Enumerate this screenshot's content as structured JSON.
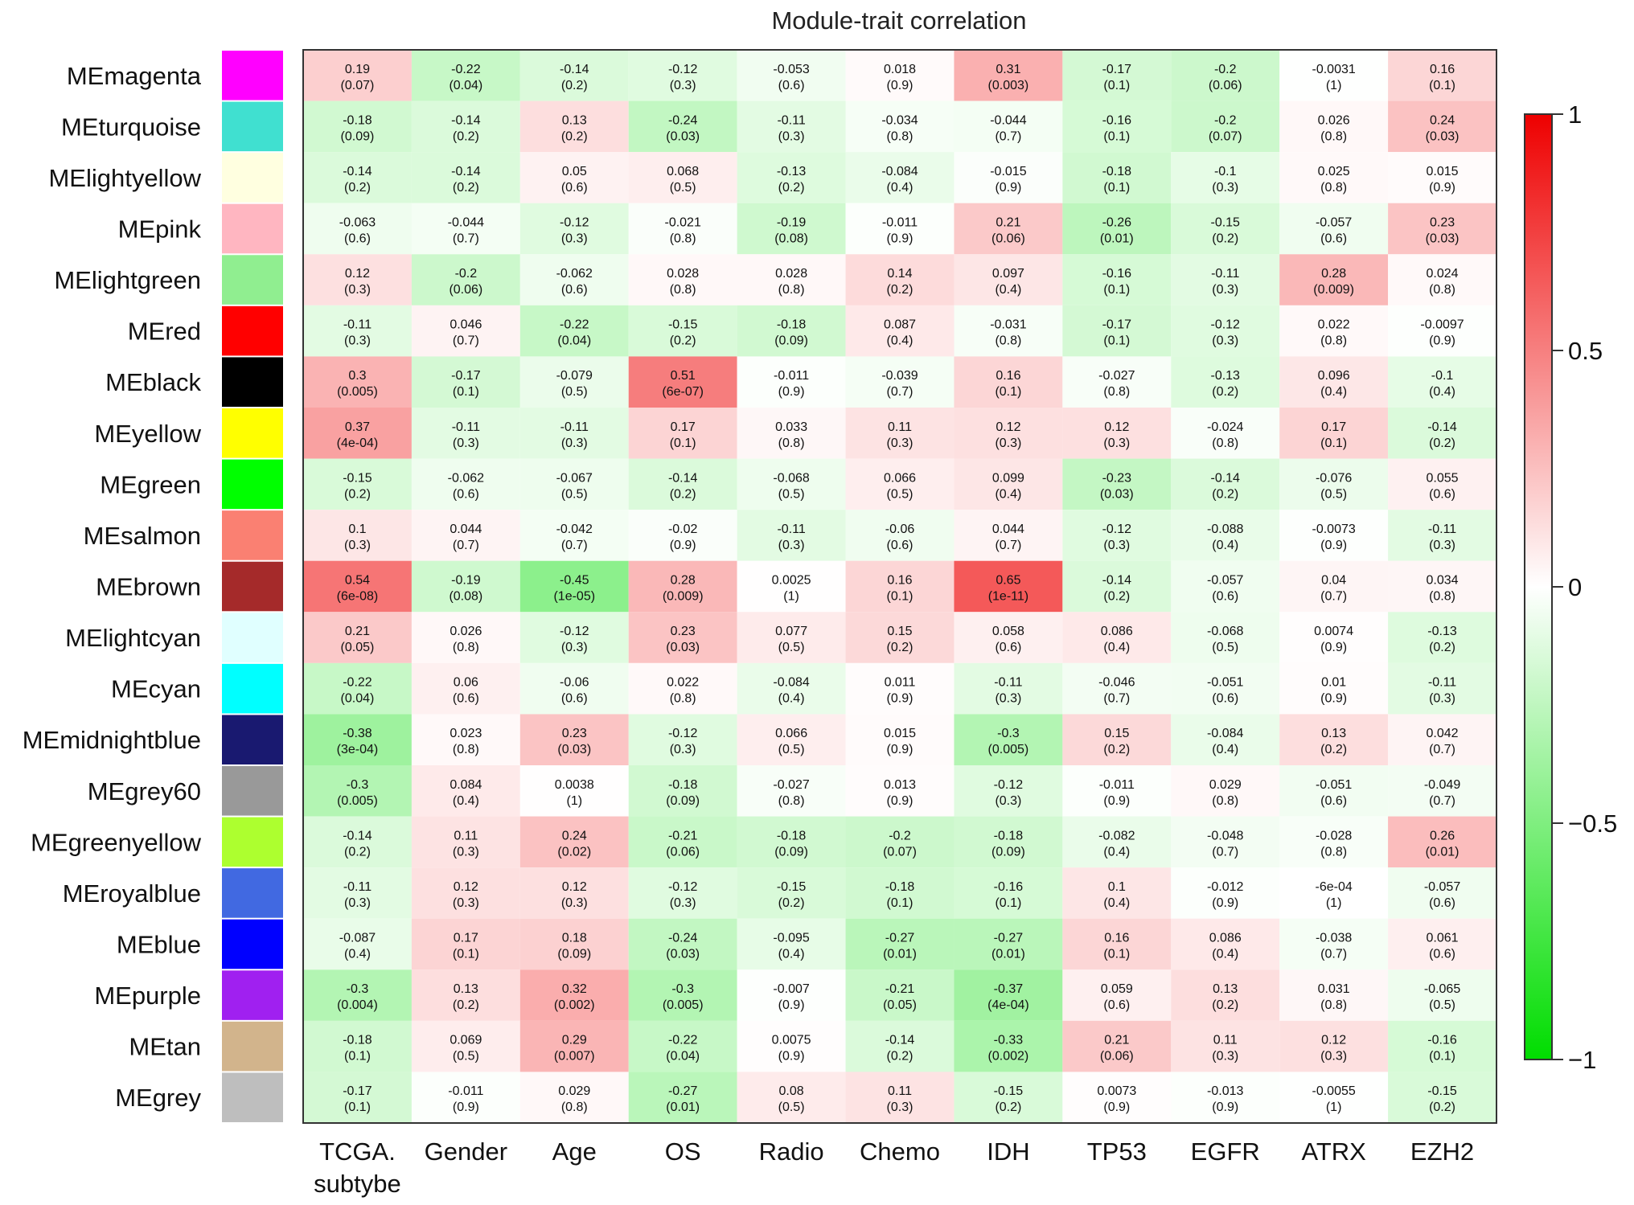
{
  "chart_data": {
    "type": "heatmap",
    "title": "Module-trait correlation",
    "rows": [
      "MEmagenta",
      "MEturquoise",
      "MElightyellow",
      "MEpink",
      "MElightgreen",
      "MEred",
      "MEblack",
      "MEyellow",
      "MEgreen",
      "MEsalmon",
      "MEbrown",
      "MElightcyan",
      "MEcyan",
      "MEmidnightblue",
      "MEgrey60",
      "MEgreenyellow",
      "MEroyalblue",
      "MEblue",
      "MEpurple",
      "MEtan",
      "MEgrey"
    ],
    "row_colors": [
      "#ff00ff",
      "#40e0d0",
      "#ffffe0",
      "#ffb6c1",
      "#90ee90",
      "#ff0000",
      "#000000",
      "#ffff00",
      "#00ff00",
      "#fa8072",
      "#a52a2a",
      "#e0ffff",
      "#00ffff",
      "#191970",
      "#999999",
      "#adff2f",
      "#4169e1",
      "#0000ff",
      "#a020f0",
      "#d2b48c",
      "#bebebe"
    ],
    "columns": [
      "TCGA. subtybe",
      "Gender",
      "Age",
      "OS",
      "Radio",
      "Chemo",
      "IDH",
      "TP53",
      "EGFR",
      "ATRX",
      "EZH2"
    ],
    "correlations": [
      [
        "0.19",
        "-0.22",
        "-0.14",
        "-0.12",
        "-0.053",
        "0.018",
        "0.31",
        "-0.17",
        "-0.2",
        "-0.0031",
        "0.16"
      ],
      [
        "-0.18",
        "-0.14",
        "0.13",
        "-0.24",
        "-0.11",
        "-0.034",
        "-0.044",
        "-0.16",
        "-0.2",
        "0.026",
        "0.24"
      ],
      [
        "-0.14",
        "-0.14",
        "0.05",
        "0.068",
        "-0.13",
        "-0.084",
        "-0.015",
        "-0.18",
        "-0.1",
        "0.025",
        "0.015"
      ],
      [
        "-0.063",
        "-0.044",
        "-0.12",
        "-0.021",
        "-0.19",
        "-0.011",
        "0.21",
        "-0.26",
        "-0.15",
        "-0.057",
        "0.23"
      ],
      [
        "0.12",
        "-0.2",
        "-0.062",
        "0.028",
        "0.028",
        "0.14",
        "0.097",
        "-0.16",
        "-0.11",
        "0.28",
        "0.024"
      ],
      [
        "-0.11",
        "0.046",
        "-0.22",
        "-0.15",
        "-0.18",
        "0.087",
        "-0.031",
        "-0.17",
        "-0.12",
        "0.022",
        "-0.0097"
      ],
      [
        "0.3",
        "-0.17",
        "-0.079",
        "0.51",
        "-0.011",
        "-0.039",
        "0.16",
        "-0.027",
        "-0.13",
        "0.096",
        "-0.1"
      ],
      [
        "0.37",
        "-0.11",
        "-0.11",
        "0.17",
        "0.033",
        "0.11",
        "0.12",
        "0.12",
        "-0.024",
        "0.17",
        "-0.14"
      ],
      [
        "-0.15",
        "-0.062",
        "-0.067",
        "-0.14",
        "-0.068",
        "0.066",
        "0.099",
        "-0.23",
        "-0.14",
        "-0.076",
        "0.055"
      ],
      [
        "0.1",
        "0.044",
        "-0.042",
        "-0.02",
        "-0.11",
        "-0.06",
        "0.044",
        "-0.12",
        "-0.088",
        "-0.0073",
        "-0.11"
      ],
      [
        "0.54",
        "-0.19",
        "-0.45",
        "0.28",
        "0.0025",
        "0.16",
        "0.65",
        "-0.14",
        "-0.057",
        "0.04",
        "0.034"
      ],
      [
        "0.21",
        "0.026",
        "-0.12",
        "0.23",
        "0.077",
        "0.15",
        "0.058",
        "0.086",
        "-0.068",
        "0.0074",
        "-0.13"
      ],
      [
        "-0.22",
        "0.06",
        "-0.06",
        "0.022",
        "-0.084",
        "0.011",
        "-0.11",
        "-0.046",
        "-0.051",
        "0.01",
        "-0.11"
      ],
      [
        "-0.38",
        "0.023",
        "0.23",
        "-0.12",
        "0.066",
        "0.015",
        "-0.3",
        "0.15",
        "-0.084",
        "0.13",
        "0.042"
      ],
      [
        "-0.3",
        "0.084",
        "0.0038",
        "-0.18",
        "-0.027",
        "0.013",
        "-0.12",
        "-0.011",
        "0.029",
        "-0.051",
        "-0.049"
      ],
      [
        "-0.14",
        "0.11",
        "0.24",
        "-0.21",
        "-0.18",
        "-0.2",
        "-0.18",
        "-0.082",
        "-0.048",
        "-0.028",
        "0.26"
      ],
      [
        "-0.11",
        "0.12",
        "0.12",
        "-0.12",
        "-0.15",
        "-0.18",
        "-0.16",
        "0.1",
        "-0.012",
        "-6e-04",
        "-0.057"
      ],
      [
        "-0.087",
        "0.17",
        "0.18",
        "-0.24",
        "-0.095",
        "-0.27",
        "-0.27",
        "0.16",
        "0.086",
        "-0.038",
        "0.061"
      ],
      [
        "-0.3",
        "0.13",
        "0.32",
        "-0.3",
        "-0.007",
        "-0.21",
        "-0.37",
        "0.059",
        "0.13",
        "0.031",
        "-0.065"
      ],
      [
        "-0.18",
        "0.069",
        "0.29",
        "-0.22",
        "0.0075",
        "-0.14",
        "-0.33",
        "0.21",
        "0.11",
        "0.12",
        "-0.16"
      ],
      [
        "-0.17",
        "-0.011",
        "0.029",
        "-0.27",
        "0.08",
        "0.11",
        "-0.15",
        "0.0073",
        "-0.013",
        "-0.0055",
        "-0.15"
      ]
    ],
    "pvalues": [
      [
        "(0.07)",
        "(0.04)",
        "(0.2)",
        "(0.3)",
        "(0.6)",
        "(0.9)",
        "(0.003)",
        "(0.1)",
        "(0.06)",
        "(1)",
        "(0.1)"
      ],
      [
        "(0.09)",
        "(0.2)",
        "(0.2)",
        "(0.03)",
        "(0.3)",
        "(0.8)",
        "(0.7)",
        "(0.1)",
        "(0.07)",
        "(0.8)",
        "(0.03)"
      ],
      [
        "(0.2)",
        "(0.2)",
        "(0.6)",
        "(0.5)",
        "(0.2)",
        "(0.4)",
        "(0.9)",
        "(0.1)",
        "(0.3)",
        "(0.8)",
        "(0.9)"
      ],
      [
        "(0.6)",
        "(0.7)",
        "(0.3)",
        "(0.8)",
        "(0.08)",
        "(0.9)",
        "(0.06)",
        "(0.01)",
        "(0.2)",
        "(0.6)",
        "(0.03)"
      ],
      [
        "(0.3)",
        "(0.06)",
        "(0.6)",
        "(0.8)",
        "(0.8)",
        "(0.2)",
        "(0.4)",
        "(0.1)",
        "(0.3)",
        "(0.009)",
        "(0.8)"
      ],
      [
        "(0.3)",
        "(0.7)",
        "(0.04)",
        "(0.2)",
        "(0.09)",
        "(0.4)",
        "(0.8)",
        "(0.1)",
        "(0.3)",
        "(0.8)",
        "(0.9)"
      ],
      [
        "(0.005)",
        "(0.1)",
        "(0.5)",
        "(6e-07)",
        "(0.9)",
        "(0.7)",
        "(0.1)",
        "(0.8)",
        "(0.2)",
        "(0.4)",
        "(0.4)"
      ],
      [
        "(4e-04)",
        "(0.3)",
        "(0.3)",
        "(0.1)",
        "(0.8)",
        "(0.3)",
        "(0.3)",
        "(0.3)",
        "(0.8)",
        "(0.1)",
        "(0.2)"
      ],
      [
        "(0.2)",
        "(0.6)",
        "(0.5)",
        "(0.2)",
        "(0.5)",
        "(0.5)",
        "(0.4)",
        "(0.03)",
        "(0.2)",
        "(0.5)",
        "(0.6)"
      ],
      [
        "(0.3)",
        "(0.7)",
        "(0.7)",
        "(0.9)",
        "(0.3)",
        "(0.6)",
        "(0.7)",
        "(0.3)",
        "(0.4)",
        "(0.9)",
        "(0.3)"
      ],
      [
        "(6e-08)",
        "(0.08)",
        "(1e-05)",
        "(0.009)",
        "(1)",
        "(0.1)",
        "(1e-11)",
        "(0.2)",
        "(0.6)",
        "(0.7)",
        "(0.8)"
      ],
      [
        "(0.05)",
        "(0.8)",
        "(0.3)",
        "(0.03)",
        "(0.5)",
        "(0.2)",
        "(0.6)",
        "(0.4)",
        "(0.5)",
        "(0.9)",
        "(0.2)"
      ],
      [
        "(0.04)",
        "(0.6)",
        "(0.6)",
        "(0.8)",
        "(0.4)",
        "(0.9)",
        "(0.3)",
        "(0.7)",
        "(0.6)",
        "(0.9)",
        "(0.3)"
      ],
      [
        "(3e-04)",
        "(0.8)",
        "(0.03)",
        "(0.3)",
        "(0.5)",
        "(0.9)",
        "(0.005)",
        "(0.2)",
        "(0.4)",
        "(0.2)",
        "(0.7)"
      ],
      [
        "(0.005)",
        "(0.4)",
        "(1)",
        "(0.09)",
        "(0.8)",
        "(0.9)",
        "(0.3)",
        "(0.9)",
        "(0.8)",
        "(0.6)",
        "(0.7)"
      ],
      [
        "(0.2)",
        "(0.3)",
        "(0.02)",
        "(0.06)",
        "(0.09)",
        "(0.07)",
        "(0.09)",
        "(0.4)",
        "(0.7)",
        "(0.8)",
        "(0.01)"
      ],
      [
        "(0.3)",
        "(0.3)",
        "(0.3)",
        "(0.3)",
        "(0.2)",
        "(0.1)",
        "(0.1)",
        "(0.4)",
        "(0.9)",
        "(1)",
        "(0.6)"
      ],
      [
        "(0.4)",
        "(0.1)",
        "(0.09)",
        "(0.03)",
        "(0.4)",
        "(0.01)",
        "(0.01)",
        "(0.1)",
        "(0.4)",
        "(0.7)",
        "(0.6)"
      ],
      [
        "(0.004)",
        "(0.2)",
        "(0.002)",
        "(0.005)",
        "(0.9)",
        "(0.05)",
        "(4e-04)",
        "(0.6)",
        "(0.2)",
        "(0.8)",
        "(0.5)"
      ],
      [
        "(0.1)",
        "(0.5)",
        "(0.007)",
        "(0.04)",
        "(0.9)",
        "(0.2)",
        "(0.002)",
        "(0.06)",
        "(0.3)",
        "(0.3)",
        "(0.1)"
      ],
      [
        "(0.1)",
        "(0.9)",
        "(0.8)",
        "(0.01)",
        "(0.5)",
        "(0.3)",
        "(0.2)",
        "(0.9)",
        "(0.9)",
        "(1)",
        "(0.2)"
      ]
    ],
    "color_scale": {
      "range": [
        -1,
        1
      ],
      "low_color": "#00dd00",
      "mid_color": "#ffffff",
      "high_color": "#ee0000",
      "ticks": [
        1,
        0.5,
        0,
        -0.5,
        -1
      ],
      "tick_labels": [
        "1",
        "0.5",
        "0",
        "−0.5",
        "−1"
      ]
    },
    "legend_placement": "right",
    "grid": false
  }
}
